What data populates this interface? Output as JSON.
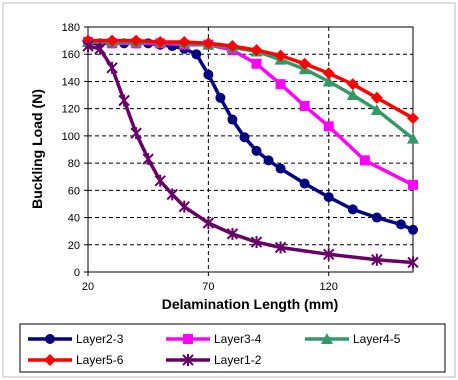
{
  "chart_data": {
    "type": "line",
    "title": "",
    "xlabel": "Delamination Length (mm)",
    "ylabel": "Buckling  Load (N)",
    "xlim": [
      20,
      155
    ],
    "ylim": [
      0,
      180
    ],
    "xticks": [
      20,
      70,
      120
    ],
    "yticks": [
      0,
      20,
      40,
      60,
      80,
      100,
      120,
      140,
      160,
      180
    ],
    "grid": "dashed vertical and horizontal",
    "legend_position": "bottom",
    "series": [
      {
        "name": "Layer2-3",
        "color": "#000080",
        "marker": "circle",
        "x": [
          20,
          25,
          30,
          35,
          40,
          45,
          50,
          55,
          60,
          65,
          70,
          75,
          80,
          85,
          90,
          95,
          100,
          110,
          120,
          130,
          140,
          150,
          155
        ],
        "y": [
          168,
          168,
          168,
          168,
          168,
          168,
          167,
          166,
          164,
          160,
          145,
          128,
          112,
          99,
          89,
          82,
          76,
          65,
          55,
          46,
          40,
          35,
          31
        ]
      },
      {
        "name": "Layer3-4",
        "color": "#ff00ff",
        "marker": "square",
        "x": [
          20,
          30,
          40,
          50,
          60,
          70,
          80,
          90,
          100,
          110,
          120,
          135,
          155
        ],
        "y": [
          169,
          168,
          168,
          168,
          167,
          167,
          163,
          153,
          138,
          122,
          107,
          82,
          64
        ]
      },
      {
        "name": "Layer4-5",
        "color": "#339966",
        "marker": "triangle",
        "x": [
          20,
          30,
          40,
          50,
          60,
          70,
          80,
          90,
          100,
          110,
          120,
          130,
          140,
          155
        ],
        "y": [
          169,
          169,
          169,
          169,
          168,
          167,
          165,
          162,
          156,
          149,
          140,
          130,
          119,
          98
        ]
      },
      {
        "name": "Layer5-6",
        "color": "#ff0000",
        "marker": "diamond",
        "x": [
          20,
          30,
          40,
          50,
          60,
          70,
          80,
          90,
          100,
          110,
          120,
          130,
          140,
          155
        ],
        "y": [
          170,
          170,
          170,
          169,
          169,
          168,
          166,
          163,
          159,
          153,
          146,
          138,
          128,
          113
        ]
      },
      {
        "name": "Layer1-2",
        "color": "#660066",
        "marker": "star",
        "x": [
          20,
          25,
          30,
          35,
          40,
          45,
          50,
          55,
          60,
          70,
          80,
          90,
          100,
          120,
          140,
          155
        ],
        "y": [
          166,
          164,
          150,
          126,
          102,
          83,
          67,
          57,
          48,
          36,
          28,
          22,
          18,
          13,
          9,
          7
        ]
      }
    ]
  }
}
